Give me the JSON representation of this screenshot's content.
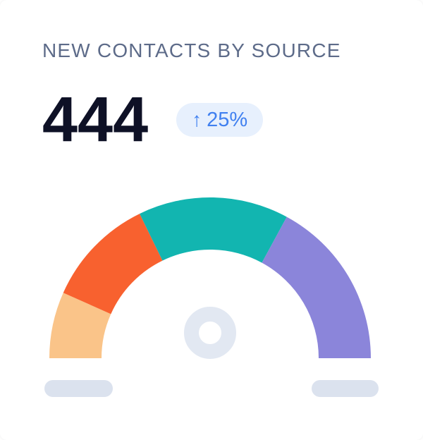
{
  "card": {
    "title": "NEW CONTACTS BY SOURCE",
    "metric_value": "444",
    "delta_badge": {
      "arrow": "↑",
      "value": "25%",
      "direction": "up"
    }
  },
  "colors": {
    "card_bg": "#FFFFFF",
    "title_text": "#5D6B89",
    "metric_text": "#0E1126",
    "badge_bg": "#E7F0FD",
    "badge_text": "#4080F0",
    "hub_ring": "#E2E8F2",
    "feet": "#DBE2EE"
  },
  "chart_data": {
    "type": "pie",
    "subtype": "half-donut-gauge",
    "title": "NEW CONTACTS BY SOURCE",
    "total_value": 444,
    "delta_pct": 25,
    "arc_span_deg": 180,
    "labels_visible": false,
    "legend": "none",
    "segments": [
      {
        "label": "slice-1",
        "color": "#FAC489",
        "sweep_deg": 24,
        "share_pct": 13.3
      },
      {
        "label": "slice-2",
        "color": "#F8612F",
        "sweep_deg": 40,
        "share_pct": 22.2
      },
      {
        "label": "slice-3",
        "color": "#12B5B0",
        "sweep_deg": 54.5,
        "share_pct": 30.3
      },
      {
        "label": "slice-4",
        "color": "#8B85DA",
        "sweep_deg": 61.5,
        "share_pct": 34.2
      }
    ]
  }
}
